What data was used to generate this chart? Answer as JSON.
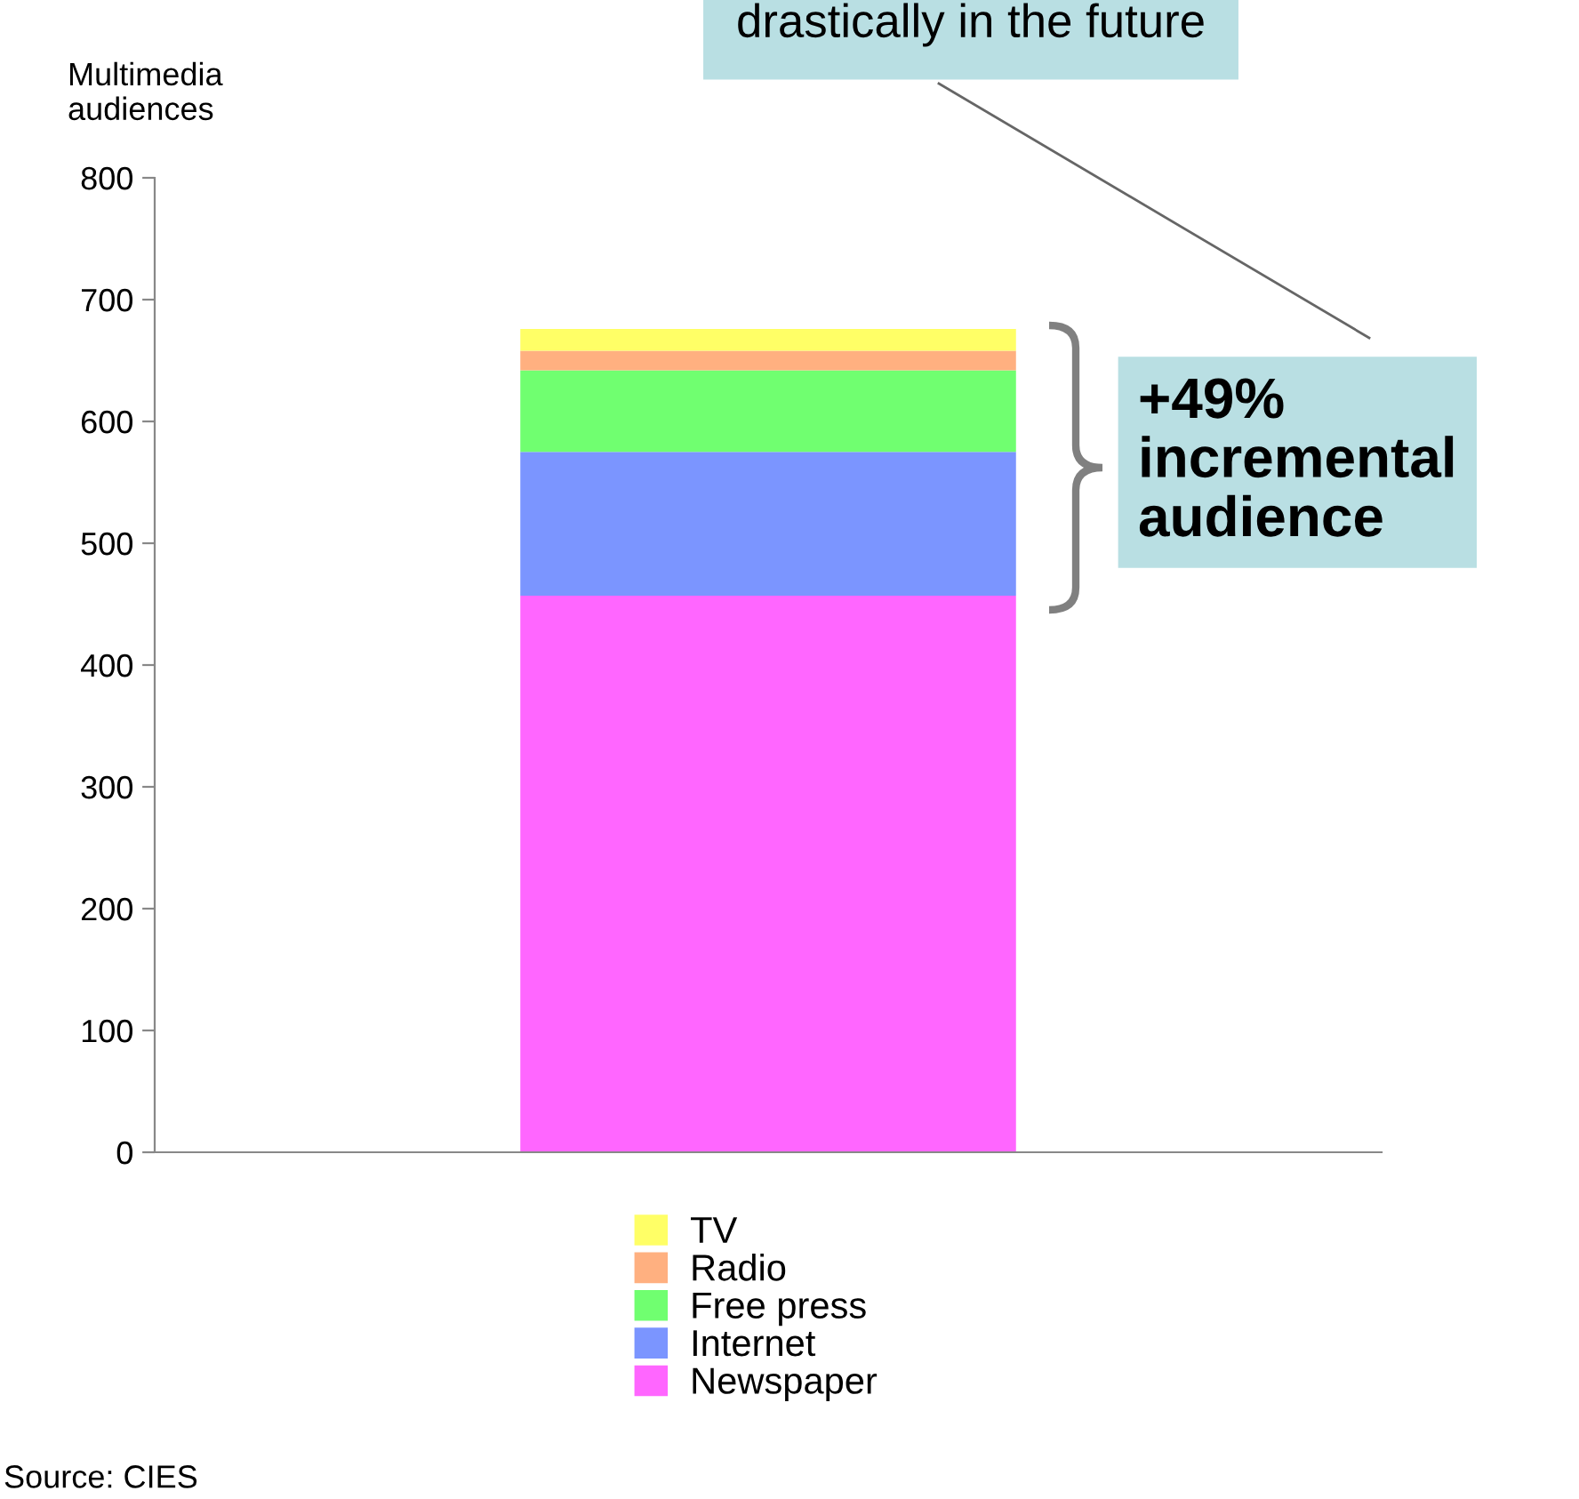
{
  "chart_data": {
    "type": "bar",
    "stacked": true,
    "categories": [
      null
    ],
    "ylabel": "Multimedia audiences",
    "series": [
      {
        "name": "Newspaper",
        "color": "#ff66ff",
        "values": [
          457
        ]
      },
      {
        "name": "Internet",
        "color": "#7b95ff",
        "values": [
          118
        ]
      },
      {
        "name": "Free press",
        "color": "#70ff70",
        "values": [
          67
        ]
      },
      {
        "name": "Radio",
        "color": "#ffb080",
        "values": [
          16
        ]
      },
      {
        "name": "TV",
        "color": "#ffff66",
        "values": [
          18
        ]
      }
    ],
    "ylim": [
      0,
      800
    ],
    "yticks": [
      0,
      100,
      200,
      300,
      400,
      500,
      600,
      700,
      800
    ],
    "grid": false,
    "legend": "bottom",
    "annotations": [
      "drastically in the future",
      "+49% incremental audience",
      "Source: CIES"
    ]
  }
}
